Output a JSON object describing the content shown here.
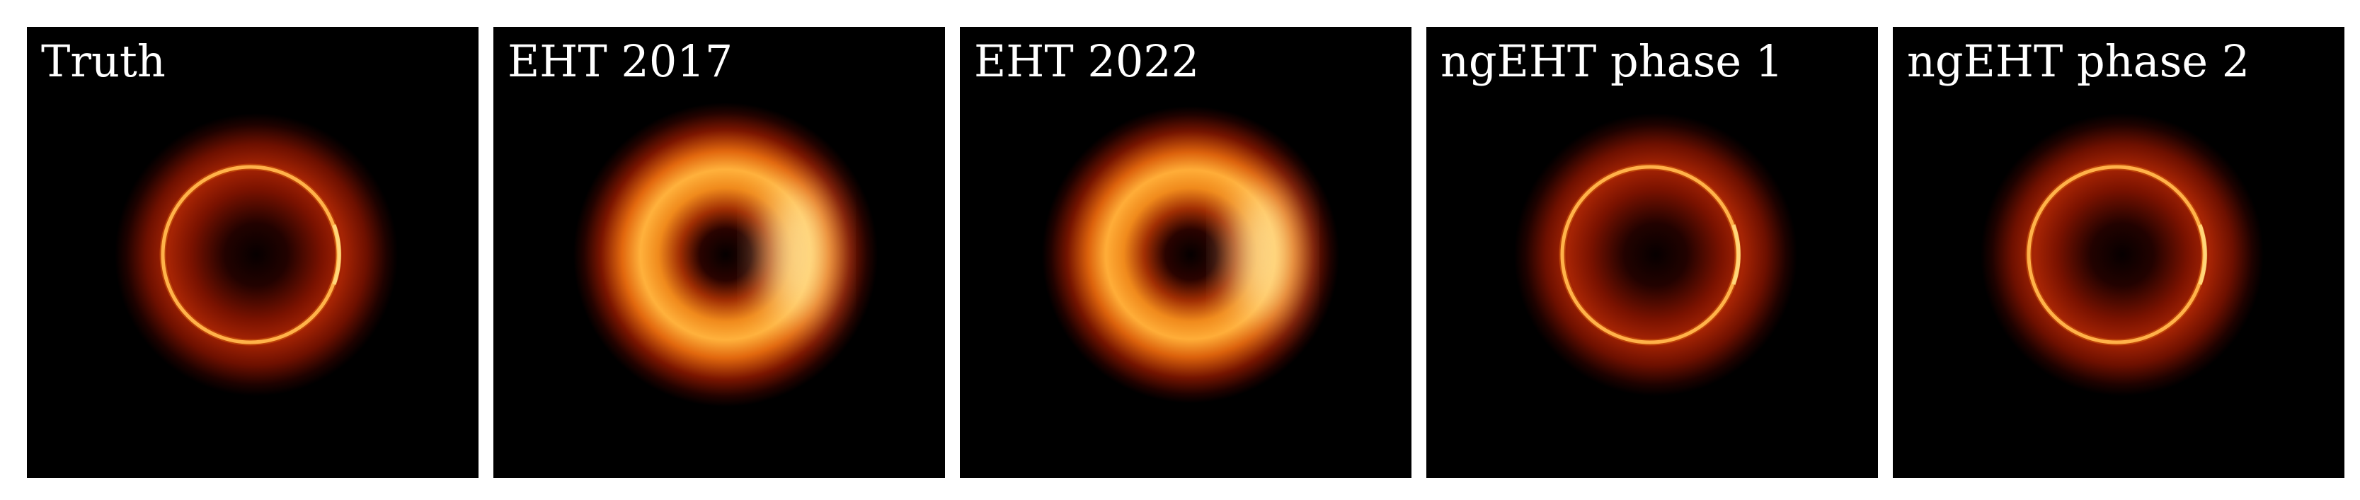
{
  "figure": {
    "panels": [
      {
        "label": "Truth",
        "style": "truth",
        "icon": "black-hole-ring-image"
      },
      {
        "label": "EHT 2017",
        "style": "blurred",
        "icon": "black-hole-ring-image"
      },
      {
        "label": "EHT 2022",
        "style": "blurred",
        "icon": "black-hole-ring-image"
      },
      {
        "label": "ngEHT phase 1",
        "style": "sharp",
        "icon": "black-hole-ring-image"
      },
      {
        "label": "ngEHT phase 2",
        "style": "sharp",
        "icon": "black-hole-ring-image"
      }
    ],
    "colors": {
      "background": "#000000",
      "ring_bright": "#ffb24a",
      "ring_hot": "#fff2b0",
      "glow_red": "#b01a04",
      "label": "#ffffff"
    }
  }
}
